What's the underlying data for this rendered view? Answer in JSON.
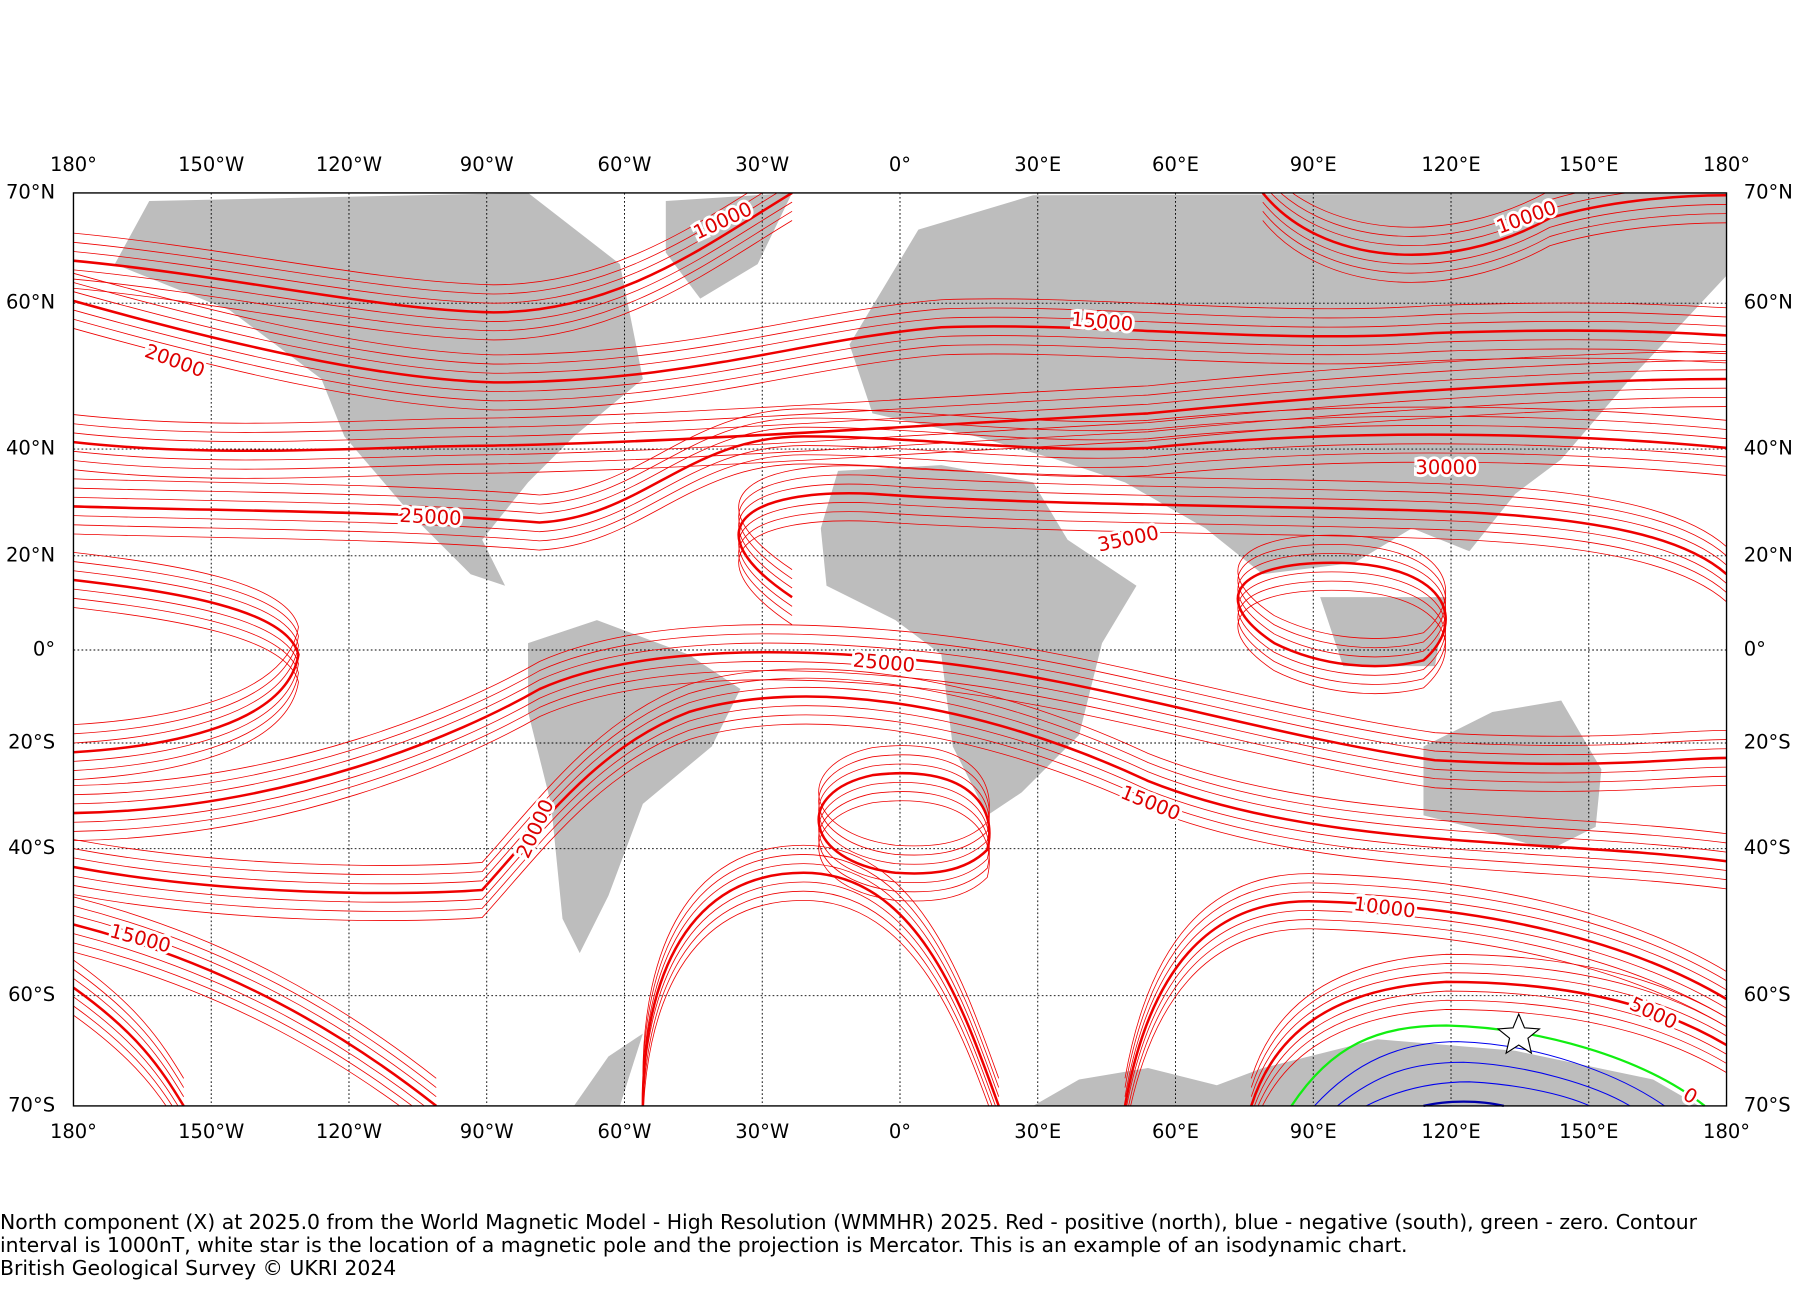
{
  "map": {
    "lon_ticks": [
      "180°",
      "150°W",
      "120°W",
      "90°W",
      "60°W",
      "30°W",
      "0°",
      "30°E",
      "60°E",
      "90°E",
      "120°E",
      "150°E",
      "180°"
    ],
    "lat_ticks": [
      "70°N",
      "60°N",
      "40°N",
      "20°N",
      "0°",
      "20°S",
      "40°S",
      "60°S",
      "70°S"
    ],
    "contour_labels": [
      "10000",
      "10000",
      "15000",
      "20000",
      "25000",
      "30000",
      "35000",
      "25000",
      "15000",
      "20000",
      "10000",
      "15000",
      "5000",
      "0"
    ]
  },
  "caption": {
    "text": "North component (X) at 2025.0 from the World Magnetic Model - High Resolution (WMMHR) 2025. Red - positive (north), blue - negative (south), green - zero. Contour interval is 1000nT, white star is the location of a magnetic pole and the projection is Mercator. This is an example of an isodynamic chart.",
    "credit": "British Geological Survey © UKRI 2024"
  }
}
